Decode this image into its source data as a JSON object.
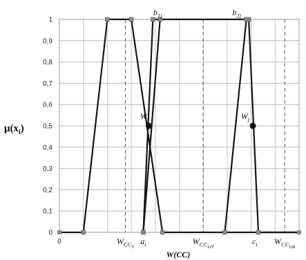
{
  "chart_data": {
    "type": "line",
    "title": "",
    "xlabel": "W(CC)",
    "ylabel": "μ(x_i)",
    "ylim": [
      0,
      1
    ],
    "xlim": [
      0,
      10
    ],
    "grid": true,
    "y_ticks": [
      "0",
      "0,1",
      "0,2",
      "0,3",
      "0,4",
      "0,5",
      "0,6",
      "0,7",
      "0,8",
      "0,9",
      "1"
    ],
    "x_ticks": [
      {
        "label": "0",
        "x": 0,
        "sub": ""
      },
      {
        "label": "W",
        "x": 2.75,
        "sub": "CC",
        "sub2": "T"
      },
      {
        "label": "a",
        "x": 3.5,
        "sub": "i",
        "sub2": ""
      },
      {
        "label": "W",
        "x": 6.0,
        "sub": "CC",
        "sub2": "LIT"
      },
      {
        "label": "c",
        "x": 8.15,
        "sub": "i",
        "sub2": ""
      },
      {
        "label": "W",
        "x": 9.4,
        "sub": "CC",
        "sub2": "OB"
      }
    ],
    "series": [
      {
        "values": [
          [
            0,
            0
          ],
          [
            1,
            0
          ],
          [
            2,
            1
          ],
          [
            3,
            1
          ],
          [
            4.3,
            0
          ],
          [
            10,
            0
          ]
        ]
      },
      {
        "values": [
          [
            3.5,
            0
          ],
          [
            3.9,
            1
          ],
          [
            7.9,
            1
          ],
          [
            8.3,
            0
          ],
          [
            10,
            0
          ]
        ]
      },
      {
        "values": [
          [
            6.9,
            0
          ],
          [
            7.8,
            1
          ]
        ]
      },
      {
        "values": [
          [
            3.5,
            0
          ],
          [
            4.2,
            1
          ]
        ]
      }
    ],
    "dashed_vlines": [
      2.75,
      6.0,
      9.4
    ],
    "annotations": [
      {
        "text": "b",
        "sub": "1j",
        "x": 4.1,
        "y": 1
      },
      {
        "text": "b",
        "sub": "2j",
        "x": 7.4,
        "y": 1
      },
      {
        "text": "W",
        "sub": "j",
        "x": 3.55,
        "y": 0.5
      },
      {
        "text": "W",
        "sub": "j",
        "x": 7.75,
        "y": 0.5
      }
    ],
    "intersections": [
      {
        "x": 3.73,
        "y": 0.5
      },
      {
        "x": 8.07,
        "y": 0.5
      }
    ]
  }
}
